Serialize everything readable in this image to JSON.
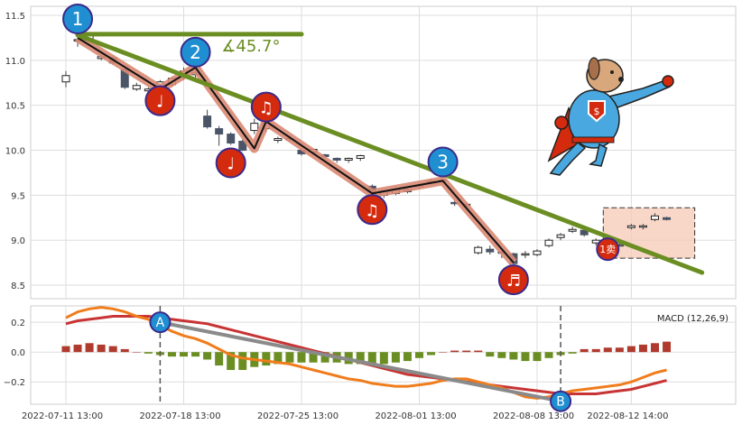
{
  "chart_data": [
    {
      "type": "candlestick",
      "title": "",
      "ylim": [
        8.35,
        11.6
      ],
      "yticks": [
        "8.5",
        "9.0",
        "9.5",
        "10.0",
        "10.5",
        "11.0",
        "11.5"
      ],
      "ytick_values": [
        8.5,
        9.0,
        9.5,
        10.0,
        10.5,
        11.0,
        11.5
      ],
      "xticks": [
        "2022-07-11 13:00",
        "2022-07-18 13:00",
        "2022-07-25 13:00",
        "2022-08-01 13:00",
        "2022-08-08 13:00",
        "2022-08-12 14:00"
      ],
      "candles": [
        {
          "x": 0,
          "o": 10.76,
          "h": 10.88,
          "c": 10.83,
          "l": 10.7
        },
        {
          "x": 1,
          "o": 11.22,
          "h": 11.28,
          "c": 11.23,
          "l": 11.15
        },
        {
          "x": 2,
          "o": 11.22,
          "h": 11.3,
          "c": 11.28,
          "l": 11.2
        },
        {
          "x": 3,
          "o": 11.02,
          "h": 11.1,
          "c": 11.04,
          "l": 11.0
        },
        {
          "x": 4,
          "o": 11.03,
          "h": 11.06,
          "c": 10.97,
          "l": 10.95
        },
        {
          "x": 5,
          "o": 10.9,
          "h": 10.92,
          "c": 10.7,
          "l": 10.68
        },
        {
          "x": 6,
          "o": 10.68,
          "h": 10.75,
          "c": 10.72,
          "l": 10.66
        },
        {
          "x": 7,
          "o": 10.66,
          "h": 10.7,
          "c": 10.68,
          "l": 10.62
        },
        {
          "x": 8,
          "o": 10.7,
          "h": 10.78,
          "c": 10.76,
          "l": 10.65
        },
        {
          "x": 9,
          "o": 10.73,
          "h": 10.82,
          "c": 10.8,
          "l": 10.7
        },
        {
          "x": 10,
          "o": 10.82,
          "h": 10.92,
          "c": 10.88,
          "l": 10.78
        },
        {
          "x": 11,
          "o": 10.84,
          "h": 10.9,
          "c": 10.86,
          "l": 10.8
        },
        {
          "x": 12,
          "o": 10.38,
          "h": 10.45,
          "c": 10.26,
          "l": 10.24
        },
        {
          "x": 13,
          "o": 10.24,
          "h": 10.27,
          "c": 10.18,
          "l": 10.05
        },
        {
          "x": 14,
          "o": 10.18,
          "h": 10.2,
          "c": 10.08,
          "l": 10.06
        },
        {
          "x": 15,
          "o": 10.1,
          "h": 10.12,
          "c": 10.0,
          "l": 9.99
        },
        {
          "x": 16,
          "o": 10.22,
          "h": 10.35,
          "c": 10.3,
          "l": 10.18
        },
        {
          "x": 17,
          "o": 10.24,
          "h": 10.34,
          "c": 10.3,
          "l": 10.2
        },
        {
          "x": 18,
          "o": 10.11,
          "h": 10.15,
          "c": 10.13,
          "l": 10.08
        },
        {
          "x": 19,
          "o": 10.12,
          "h": 10.16,
          "c": 10.13,
          "l": 10.1
        },
        {
          "x": 20,
          "o": 10.0,
          "h": 10.02,
          "c": 9.96,
          "l": 9.94
        },
        {
          "x": 21,
          "o": 9.98,
          "h": 10.02,
          "c": 10.01,
          "l": 9.96
        },
        {
          "x": 22,
          "o": 9.95,
          "h": 9.96,
          "c": 9.93,
          "l": 9.9
        },
        {
          "x": 23,
          "o": 9.91,
          "h": 9.92,
          "c": 9.89,
          "l": 9.86
        },
        {
          "x": 24,
          "o": 9.89,
          "h": 9.92,
          "c": 9.91,
          "l": 9.86
        },
        {
          "x": 25,
          "o": 9.91,
          "h": 9.95,
          "c": 9.94,
          "l": 9.88
        },
        {
          "x": 26,
          "o": 9.6,
          "h": 9.62,
          "c": 9.53,
          "l": 9.5
        },
        {
          "x": 27,
          "o": 9.5,
          "h": 9.56,
          "c": 9.55,
          "l": 9.47
        },
        {
          "x": 28,
          "o": 9.52,
          "h": 9.58,
          "c": 9.56,
          "l": 9.5
        },
        {
          "x": 29,
          "o": 9.54,
          "h": 9.57,
          "c": 9.56,
          "l": 9.52
        },
        {
          "x": 30,
          "o": 9.6,
          "h": 9.63,
          "c": 9.61,
          "l": 9.57
        },
        {
          "x": 31,
          "o": 9.66,
          "h": 9.68,
          "c": 9.64,
          "l": 9.62
        },
        {
          "x": 32,
          "o": 9.66,
          "h": 9.68,
          "c": 9.67,
          "l": 9.62
        },
        {
          "x": 33,
          "o": 9.42,
          "h": 9.44,
          "c": 9.41,
          "l": 9.38
        },
        {
          "x": 34,
          "o": 9.4,
          "h": 9.42,
          "c": 9.4,
          "l": 9.37
        },
        {
          "x": 35,
          "o": 8.86,
          "h": 8.94,
          "c": 8.92,
          "l": 8.84
        },
        {
          "x": 36,
          "o": 8.9,
          "h": 8.94,
          "c": 8.87,
          "l": 8.84
        },
        {
          "x": 37,
          "o": 8.87,
          "h": 8.9,
          "c": 8.86,
          "l": 8.8
        },
        {
          "x": 38,
          "o": 8.85,
          "h": 8.86,
          "c": 8.74,
          "l": 8.72
        },
        {
          "x": 39,
          "o": 8.84,
          "h": 8.88,
          "c": 8.85,
          "l": 8.8
        },
        {
          "x": 40,
          "o": 8.84,
          "h": 8.9,
          "c": 8.88,
          "l": 8.82
        },
        {
          "x": 41,
          "o": 8.94,
          "h": 9.02,
          "c": 9.0,
          "l": 8.92
        },
        {
          "x": 42,
          "o": 9.03,
          "h": 9.08,
          "c": 9.06,
          "l": 9.0
        },
        {
          "x": 43,
          "o": 9.1,
          "h": 9.15,
          "c": 9.12,
          "l": 9.08
        },
        {
          "x": 44,
          "o": 9.11,
          "h": 9.14,
          "c": 9.06,
          "l": 9.04
        },
        {
          "x": 45,
          "o": 8.97,
          "h": 9.02,
          "c": 9.0,
          "l": 8.94
        },
        {
          "x": 46,
          "o": 8.95,
          "h": 8.97,
          "c": 8.94,
          "l": 8.92
        },
        {
          "x": 47,
          "o": 8.95,
          "h": 8.97,
          "c": 8.95,
          "l": 8.93
        },
        {
          "x": 48,
          "o": 9.14,
          "h": 9.18,
          "c": 9.16,
          "l": 9.12
        },
        {
          "x": 49,
          "o": 9.15,
          "h": 9.18,
          "c": 9.16,
          "l": 9.12
        },
        {
          "x": 50,
          "o": 9.23,
          "h": 9.3,
          "c": 9.27,
          "l": 9.21
        },
        {
          "x": 51,
          "o": 9.25,
          "h": 9.26,
          "c": 9.23,
          "l": 9.22
        }
      ],
      "zigzag": [
        [
          1,
          11.25
        ],
        [
          8,
          10.68
        ],
        [
          11,
          10.92
        ],
        [
          16,
          10.02
        ],
        [
          17,
          10.32
        ],
        [
          26,
          9.52
        ],
        [
          32,
          9.66
        ],
        [
          38,
          8.75
        ]
      ],
      "trendlines": [
        {
          "from": [
            1,
            11.29
          ],
          "to": [
            20,
            11.29
          ]
        },
        {
          "from": [
            1,
            11.28
          ],
          "to": [
            54,
            8.64
          ]
        }
      ],
      "markers": [
        {
          "label": "1",
          "x": 1,
          "y": 11.46,
          "style": "blue"
        },
        {
          "label": "2",
          "x": 11,
          "y": 11.09,
          "style": "blue"
        },
        {
          "label": "3",
          "x": 32,
          "y": 9.87,
          "style": "blue"
        },
        {
          "label": "♩",
          "x": 8,
          "y": 10.55,
          "style": "red"
        },
        {
          "label": "♩",
          "x": 14,
          "y": 9.86,
          "style": "red"
        },
        {
          "label": "♫",
          "x": 17,
          "y": 10.48,
          "style": "red"
        },
        {
          "label": "♫",
          "x": 26,
          "y": 9.34,
          "style": "red"
        },
        {
          "label": "♬",
          "x": 38,
          "y": 8.56,
          "style": "red"
        }
      ],
      "angle_label": "∡45.7°",
      "sell_label": "1卖",
      "sell_marker": {
        "x": 46,
        "y": 8.9
      },
      "highlight": {
        "x0": 46,
        "x1": 53,
        "y0": 8.8,
        "y1": 9.36
      },
      "colors": {
        "up_edge": "#222222",
        "down_fill": "#4a5568",
        "zigzag_outer": "#d98a74",
        "trend": "#6b8e23",
        "blue": "#1f8fd1",
        "red": "#d42a0e",
        "highlight": "#f7c9b6"
      }
    },
    {
      "type": "macd",
      "label": "MACD (12,26,9)",
      "ylim": [
        -0.35,
        0.31
      ],
      "yticks": [
        "−0.2",
        "0.0",
        "0.2"
      ],
      "ytick_values": [
        -0.2,
        0.0,
        0.2
      ],
      "dif": [
        0.23,
        0.27,
        0.29,
        0.3,
        0.29,
        0.27,
        0.24,
        0.22,
        0.18,
        0.14,
        0.11,
        0.09,
        0.06,
        0.02,
        -0.02,
        -0.04,
        -0.05,
        -0.06,
        -0.07,
        -0.08,
        -0.1,
        -0.12,
        -0.14,
        -0.16,
        -0.18,
        -0.19,
        -0.21,
        -0.22,
        -0.23,
        -0.23,
        -0.22,
        -0.21,
        -0.19,
        -0.18,
        -0.18,
        -0.2,
        -0.22,
        -0.24,
        -0.27,
        -0.3,
        -0.31,
        -0.3,
        -0.28,
        -0.26,
        -0.25,
        -0.24,
        -0.23,
        -0.22,
        -0.2,
        -0.17,
        -0.14,
        -0.12
      ],
      "dea": [
        0.19,
        0.21,
        0.22,
        0.23,
        0.24,
        0.24,
        0.24,
        0.24,
        0.23,
        0.22,
        0.21,
        0.2,
        0.19,
        0.17,
        0.15,
        0.13,
        0.11,
        0.09,
        0.07,
        0.05,
        0.03,
        0.01,
        -0.01,
        -0.03,
        -0.05,
        -0.07,
        -0.09,
        -0.11,
        -0.13,
        -0.15,
        -0.16,
        -0.17,
        -0.18,
        -0.19,
        -0.2,
        -0.21,
        -0.22,
        -0.23,
        -0.24,
        -0.25,
        -0.26,
        -0.27,
        -0.28,
        -0.28,
        -0.28,
        -0.28,
        -0.27,
        -0.26,
        -0.25,
        -0.23,
        -0.21,
        -0.19
      ],
      "hist": [
        0.04,
        0.05,
        0.06,
        0.05,
        0.04,
        0.02,
        0.0,
        -0.01,
        -0.02,
        -0.03,
        -0.03,
        -0.03,
        -0.05,
        -0.09,
        -0.12,
        -0.12,
        -0.1,
        -0.09,
        -0.08,
        -0.07,
        -0.07,
        -0.07,
        -0.07,
        -0.07,
        -0.08,
        -0.08,
        -0.08,
        -0.08,
        -0.07,
        -0.06,
        -0.04,
        -0.02,
        0.0,
        0.01,
        0.01,
        0.01,
        -0.03,
        -0.04,
        -0.05,
        -0.06,
        -0.06,
        -0.04,
        -0.02,
        -0.01,
        0.02,
        0.02,
        0.03,
        0.03,
        0.04,
        0.05,
        0.06,
        0.07
      ],
      "vlines": [
        {
          "label": "A",
          "x": 8
        },
        {
          "label": "B",
          "x": 42
        }
      ],
      "trend": {
        "from": [
          8,
          0.2
        ],
        "to": [
          42,
          -0.33
        ]
      },
      "colors": {
        "dif": "#f07c1c",
        "dea": "#c83434",
        "hist_pos": "#b03a2e",
        "hist_neg": "#6b8e23",
        "trend": "#8a8a8a",
        "marker": "#1f8fd1"
      }
    }
  ]
}
